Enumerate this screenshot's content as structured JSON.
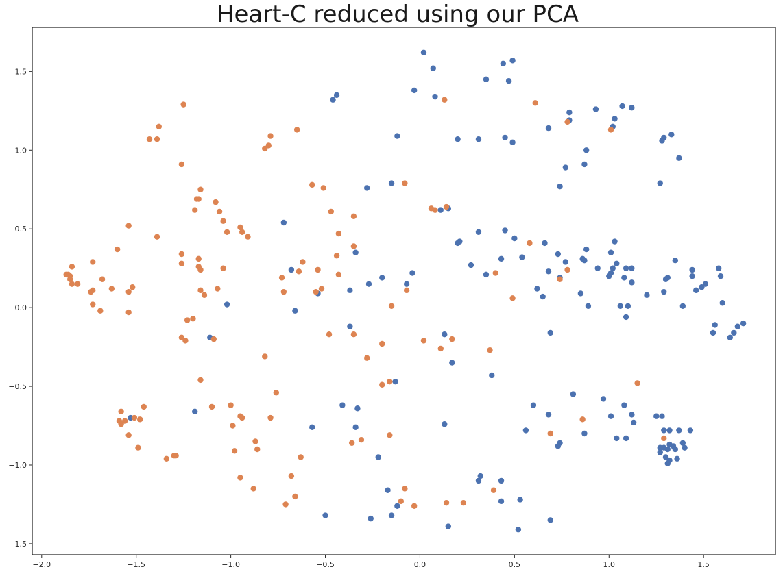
{
  "chart_data": {
    "type": "scatter",
    "title": "Heart-C reduced using our PCA",
    "xlabel": "",
    "ylabel": "",
    "xlim": [
      -2.05,
      1.88
    ],
    "ylim": [
      -1.57,
      1.78
    ],
    "grid": false,
    "x_ticks": [
      -2.0,
      -1.5,
      -1.0,
      -0.5,
      0.0,
      0.5,
      1.0,
      1.5
    ],
    "x_tick_labels": [
      "−2.0",
      "−1.5",
      "−1.0",
      "−0.5",
      "0.0",
      "0.5",
      "1.0",
      "1.5"
    ],
    "y_ticks": [
      1.5,
      1.0,
      0.5,
      0.0,
      -0.5,
      -1.0,
      -1.5
    ],
    "y_tick_labels": [
      "1.5",
      "1.0",
      "0.5",
      "0.0",
      "−0.5",
      "−1.0",
      "−1.5"
    ],
    "series": [
      {
        "color": "#4c72b0",
        "points": [
          [
            0.02,
            1.62
          ],
          [
            0.07,
            1.52
          ],
          [
            0.44,
            1.55
          ],
          [
            0.49,
            1.57
          ],
          [
            0.47,
            1.44
          ],
          [
            -0.03,
            1.38
          ],
          [
            0.08,
            1.34
          ],
          [
            -0.44,
            1.35
          ],
          [
            -0.46,
            1.32
          ],
          [
            0.35,
            1.45
          ],
          [
            1.07,
            1.28
          ],
          [
            1.12,
            1.27
          ],
          [
            0.93,
            1.26
          ],
          [
            0.79,
            1.24
          ],
          [
            0.79,
            1.19
          ],
          [
            1.03,
            1.2
          ],
          [
            1.02,
            1.15
          ],
          [
            0.68,
            1.14
          ],
          [
            1.33,
            1.1
          ],
          [
            1.29,
            1.08
          ],
          [
            1.28,
            1.06
          ],
          [
            0.2,
            1.07
          ],
          [
            0.31,
            1.07
          ],
          [
            0.45,
            1.08
          ],
          [
            0.49,
            1.05
          ],
          [
            -0.12,
            1.09
          ],
          [
            0.88,
            1.0
          ],
          [
            1.37,
            0.95
          ],
          [
            0.87,
            0.91
          ],
          [
            0.77,
            0.89
          ],
          [
            1.27,
            0.79
          ],
          [
            0.74,
            0.77
          ],
          [
            -0.15,
            0.79
          ],
          [
            -0.28,
            0.76
          ],
          [
            -0.72,
            0.54
          ],
          [
            0.15,
            0.63
          ],
          [
            0.11,
            0.62
          ],
          [
            0.31,
            0.48
          ],
          [
            0.45,
            0.49
          ],
          [
            0.5,
            0.44
          ],
          [
            0.21,
            0.42
          ],
          [
            0.2,
            0.41
          ],
          [
            0.66,
            0.41
          ],
          [
            1.03,
            0.42
          ],
          [
            0.88,
            0.37
          ],
          [
            1.01,
            0.35
          ],
          [
            0.54,
            0.32
          ],
          [
            0.43,
            0.31
          ],
          [
            0.73,
            0.34
          ],
          [
            0.86,
            0.31
          ],
          [
            0.87,
            0.3
          ],
          [
            0.77,
            0.29
          ],
          [
            1.35,
            0.3
          ],
          [
            1.04,
            0.28
          ],
          [
            0.27,
            0.27
          ],
          [
            -0.68,
            0.24
          ],
          [
            -0.34,
            0.35
          ],
          [
            0.94,
            0.25
          ],
          [
            1.02,
            0.25
          ],
          [
            1.09,
            0.25
          ],
          [
            1.12,
            0.25
          ],
          [
            1.44,
            0.24
          ],
          [
            1.58,
            0.25
          ],
          [
            0.68,
            0.23
          ],
          [
            0.35,
            0.21
          ],
          [
            -0.04,
            0.22
          ],
          [
            -0.2,
            0.19
          ],
          [
            1.0,
            0.2
          ],
          [
            1.01,
            0.22
          ],
          [
            1.08,
            0.19
          ],
          [
            1.31,
            0.19
          ],
          [
            1.3,
            0.18
          ],
          [
            1.44,
            0.2
          ],
          [
            1.59,
            0.2
          ],
          [
            1.51,
            0.15
          ],
          [
            1.49,
            0.13
          ],
          [
            -0.54,
            0.09
          ],
          [
            -0.27,
            0.15
          ],
          [
            -0.07,
            0.15
          ],
          [
            0.62,
            0.12
          ],
          [
            0.85,
            0.09
          ],
          [
            0.74,
            0.19
          ],
          [
            1.12,
            0.16
          ],
          [
            1.46,
            0.11
          ],
          [
            1.29,
            0.1
          ],
          [
            -0.37,
            0.11
          ],
          [
            0.65,
            0.07
          ],
          [
            1.2,
            0.08
          ],
          [
            1.06,
            0.01
          ],
          [
            1.1,
            0.01
          ],
          [
            0.89,
            0.01
          ],
          [
            1.39,
            0.01
          ],
          [
            1.6,
            0.03
          ],
          [
            -1.02,
            0.02
          ],
          [
            -0.66,
            -0.02
          ],
          [
            1.09,
            -0.06
          ],
          [
            1.56,
            -0.11
          ],
          [
            1.55,
            -0.16
          ],
          [
            1.68,
            -0.12
          ],
          [
            1.71,
            -0.1
          ],
          [
            1.66,
            -0.16
          ],
          [
            1.64,
            -0.19
          ],
          [
            0.69,
            -0.16
          ],
          [
            -1.11,
            -0.19
          ],
          [
            -0.37,
            -0.12
          ],
          [
            0.13,
            -0.17
          ],
          [
            0.17,
            -0.35
          ],
          [
            0.38,
            -0.43
          ],
          [
            -0.13,
            -0.47
          ],
          [
            -1.19,
            -0.66
          ],
          [
            -1.53,
            -0.7
          ],
          [
            -0.41,
            -0.62
          ],
          [
            -0.33,
            -0.64
          ],
          [
            -0.57,
            -0.76
          ],
          [
            -0.34,
            -0.76
          ],
          [
            0.13,
            -0.74
          ],
          [
            0.6,
            -0.62
          ],
          [
            0.68,
            -0.68
          ],
          [
            0.56,
            -0.78
          ],
          [
            0.81,
            -0.55
          ],
          [
            0.97,
            -0.58
          ],
          [
            1.01,
            -0.69
          ],
          [
            1.08,
            -0.62
          ],
          [
            1.12,
            -0.68
          ],
          [
            1.13,
            -0.73
          ],
          [
            1.25,
            -0.69
          ],
          [
            1.28,
            -0.69
          ],
          [
            0.87,
            -0.8
          ],
          [
            0.74,
            -0.86
          ],
          [
            0.73,
            -0.88
          ],
          [
            1.04,
            -0.83
          ],
          [
            1.09,
            -0.83
          ],
          [
            1.29,
            -0.78
          ],
          [
            1.32,
            -0.78
          ],
          [
            1.37,
            -0.78
          ],
          [
            1.43,
            -0.78
          ],
          [
            1.39,
            -0.86
          ],
          [
            1.32,
            -0.87
          ],
          [
            1.34,
            -0.88
          ],
          [
            1.27,
            -0.89
          ],
          [
            1.29,
            -0.89
          ],
          [
            1.31,
            -0.9
          ],
          [
            1.35,
            -0.9
          ],
          [
            1.4,
            -0.89
          ],
          [
            1.27,
            -0.92
          ],
          [
            1.3,
            -0.95
          ],
          [
            1.32,
            -0.97
          ],
          [
            1.36,
            -0.96
          ],
          [
            1.31,
            -0.99
          ],
          [
            -0.22,
            -0.95
          ],
          [
            0.32,
            -1.07
          ],
          [
            0.31,
            -1.1
          ],
          [
            0.43,
            -1.1
          ],
          [
            -0.17,
            -1.16
          ],
          [
            -0.12,
            -1.26
          ],
          [
            0.43,
            -1.23
          ],
          [
            0.53,
            -1.22
          ],
          [
            -0.5,
            -1.32
          ],
          [
            -0.26,
            -1.34
          ],
          [
            -0.15,
            -1.32
          ],
          [
            0.15,
            -1.39
          ],
          [
            0.69,
            -1.35
          ],
          [
            0.52,
            -1.41
          ]
        ]
      },
      {
        "color": "#dd8452",
        "points": [
          [
            -1.25,
            1.29
          ],
          [
            -1.38,
            1.15
          ],
          [
            -1.43,
            1.07
          ],
          [
            -1.39,
            1.07
          ],
          [
            -0.65,
            1.13
          ],
          [
            -0.79,
            1.09
          ],
          [
            -0.8,
            1.03
          ],
          [
            -0.82,
            1.01
          ],
          [
            -1.26,
            0.91
          ],
          [
            0.13,
            1.32
          ],
          [
            0.61,
            1.3
          ],
          [
            0.78,
            1.18
          ],
          [
            1.01,
            1.13
          ],
          [
            -0.57,
            0.78
          ],
          [
            -0.51,
            0.76
          ],
          [
            -0.08,
            0.79
          ],
          [
            -1.16,
            0.75
          ],
          [
            -1.18,
            0.69
          ],
          [
            -1.17,
            0.69
          ],
          [
            -1.08,
            0.67
          ],
          [
            -1.19,
            0.62
          ],
          [
            -1.06,
            0.61
          ],
          [
            -0.47,
            0.61
          ],
          [
            -0.35,
            0.58
          ],
          [
            0.06,
            0.63
          ],
          [
            0.08,
            0.62
          ],
          [
            0.14,
            0.64
          ],
          [
            -1.04,
            0.55
          ],
          [
            -1.54,
            0.52
          ],
          [
            -0.95,
            0.51
          ],
          [
            -0.94,
            0.48
          ],
          [
            -1.02,
            0.48
          ],
          [
            -0.91,
            0.45
          ],
          [
            -1.39,
            0.45
          ],
          [
            -0.43,
            0.47
          ],
          [
            -0.35,
            0.39
          ],
          [
            -1.26,
            0.34
          ],
          [
            -1.6,
            0.37
          ],
          [
            -0.44,
            0.33
          ],
          [
            -1.17,
            0.31
          ],
          [
            -1.73,
            0.29
          ],
          [
            -1.26,
            0.28
          ],
          [
            -0.62,
            0.29
          ],
          [
            -1.84,
            0.26
          ],
          [
            -1.17,
            0.26
          ],
          [
            -1.16,
            0.24
          ],
          [
            -1.04,
            0.25
          ],
          [
            -0.54,
            0.24
          ],
          [
            -1.87,
            0.21
          ],
          [
            -1.86,
            0.21
          ],
          [
            -1.85,
            0.2
          ],
          [
            -1.85,
            0.18
          ],
          [
            -1.84,
            0.15
          ],
          [
            -1.81,
            0.15
          ],
          [
            -1.68,
            0.18
          ],
          [
            -0.73,
            0.19
          ],
          [
            -0.64,
            0.23
          ],
          [
            -0.43,
            0.21
          ],
          [
            0.4,
            0.22
          ],
          [
            0.78,
            0.24
          ],
          [
            -1.52,
            0.13
          ],
          [
            -1.63,
            0.12
          ],
          [
            -1.73,
            0.11
          ],
          [
            -1.74,
            0.1
          ],
          [
            -1.54,
            0.1
          ],
          [
            -1.16,
            0.11
          ],
          [
            -1.14,
            0.08
          ],
          [
            -1.07,
            0.12
          ],
          [
            -0.72,
            0.1
          ],
          [
            -0.55,
            0.1
          ],
          [
            -0.52,
            0.12
          ],
          [
            -0.07,
            0.11
          ],
          [
            0.74,
            0.18
          ],
          [
            -1.73,
            0.02
          ],
          [
            -1.69,
            -0.02
          ],
          [
            -1.54,
            -0.03
          ],
          [
            -0.15,
            0.01
          ],
          [
            0.49,
            0.06
          ],
          [
            -1.2,
            -0.07
          ],
          [
            -1.23,
            -0.08
          ],
          [
            -1.26,
            -0.19
          ],
          [
            -1.24,
            -0.21
          ],
          [
            -1.09,
            -0.2
          ],
          [
            -0.48,
            -0.17
          ],
          [
            -0.35,
            -0.17
          ],
          [
            -0.2,
            -0.23
          ],
          [
            0.02,
            -0.21
          ],
          [
            0.17,
            -0.2
          ],
          [
            0.11,
            -0.26
          ],
          [
            0.37,
            -0.27
          ],
          [
            -0.28,
            -0.32
          ],
          [
            -0.82,
            -0.31
          ],
          [
            -1.16,
            -0.46
          ],
          [
            -0.2,
            -0.49
          ],
          [
            -0.16,
            -0.47
          ],
          [
            0.58,
            0.41
          ],
          [
            1.15,
            -0.48
          ],
          [
            -0.76,
            -0.54
          ],
          [
            -1.46,
            -0.63
          ],
          [
            -1.1,
            -0.63
          ],
          [
            -1.0,
            -0.62
          ],
          [
            -1.58,
            -0.66
          ],
          [
            -1.51,
            -0.7
          ],
          [
            -1.48,
            -0.71
          ],
          [
            -0.95,
            -0.69
          ],
          [
            -0.94,
            -0.7
          ],
          [
            -0.79,
            -0.7
          ],
          [
            -1.59,
            -0.72
          ],
          [
            -1.58,
            -0.74
          ],
          [
            -1.56,
            -0.72
          ],
          [
            -0.99,
            -0.75
          ],
          [
            -1.54,
            -0.81
          ],
          [
            -0.16,
            -0.81
          ],
          [
            0.86,
            -0.71
          ],
          [
            0.69,
            -0.8
          ],
          [
            1.29,
            -0.83
          ],
          [
            -0.87,
            -0.85
          ],
          [
            -0.31,
            -0.84
          ],
          [
            -0.36,
            -0.86
          ],
          [
            -1.49,
            -0.89
          ],
          [
            -0.86,
            -0.9
          ],
          [
            -0.98,
            -0.91
          ],
          [
            -1.3,
            -0.94
          ],
          [
            -1.29,
            -0.94
          ],
          [
            -1.34,
            -0.96
          ],
          [
            -0.63,
            -0.95
          ],
          [
            -0.95,
            -1.08
          ],
          [
            -0.68,
            -1.07
          ],
          [
            -0.88,
            -1.15
          ],
          [
            -0.66,
            -1.2
          ],
          [
            -0.71,
            -1.25
          ],
          [
            -0.08,
            -1.15
          ],
          [
            0.39,
            -1.16
          ],
          [
            -0.1,
            -1.23
          ],
          [
            -0.03,
            -1.26
          ],
          [
            0.14,
            -1.24
          ],
          [
            0.23,
            -1.24
          ]
        ]
      }
    ]
  }
}
